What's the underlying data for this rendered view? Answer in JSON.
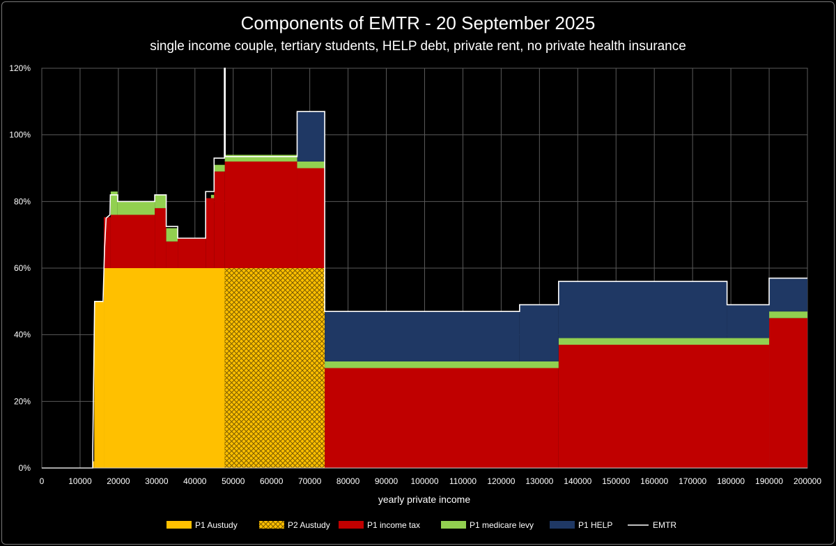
{
  "chart_data": {
    "type": "area",
    "title": "Components of EMTR - 20 September 2025",
    "subtitle": "single income couple, tertiary students, HELP debt, private rent, no private health insurance",
    "xlabel": "yearly private income",
    "ylabel": "",
    "xlim": [
      0,
      200000
    ],
    "ylim": [
      0,
      1.2
    ],
    "x_ticks": [
      0,
      10000,
      20000,
      30000,
      40000,
      50000,
      60000,
      70000,
      80000,
      90000,
      100000,
      110000,
      120000,
      130000,
      140000,
      150000,
      160000,
      170000,
      180000,
      190000,
      200000
    ],
    "x_tick_labels": [
      "0",
      "10000",
      "20000",
      "30000",
      "40000",
      "50000",
      "60000",
      "70000",
      "80000",
      "90000",
      "100000",
      "110000",
      "120000",
      "130000",
      "140000",
      "150000",
      "160000",
      "170000",
      "180000",
      "190000",
      "200000"
    ],
    "y_ticks": [
      0,
      0.2,
      0.4,
      0.6,
      0.8,
      1.0,
      1.2
    ],
    "y_tick_labels": [
      "0%",
      "20%",
      "40%",
      "60%",
      "80%",
      "100%",
      "120%"
    ],
    "grid": true,
    "legend_position": "bottom",
    "colors": {
      "background": "#000000",
      "p1_austudy": "#ffc000",
      "p2_austudy_fill": "#ffc000",
      "p2_austudy_hatch": "#7a5c00",
      "p1_income_tax": "#c00000",
      "p1_medicare_levy": "#92d050",
      "p1_help": "#1f3864",
      "emtr": "#ffffff",
      "grid": "#5a5a5a"
    },
    "series": [
      {
        "name": "P1 Austudy",
        "segments": [
          {
            "x0": 13300,
            "x1": 13700,
            "y": 0.02
          },
          {
            "x0": 13700,
            "x1": 16200,
            "y": 0.5
          },
          {
            "x0": 16200,
            "x1": 47800,
            "y": 0.6
          }
        ]
      },
      {
        "name": "P2 Austudy",
        "segments": [
          {
            "x0": 47800,
            "x1": 73900,
            "y": 0.6
          }
        ]
      },
      {
        "name": "P1 income tax",
        "segments": [
          {
            "x0": 16200,
            "x1": 18000,
            "y": 0.153
          },
          {
            "x0": 18000,
            "x1": 29500,
            "y": 0.16
          },
          {
            "x0": 29500,
            "x1": 32500,
            "y": 0.18
          },
          {
            "x0": 32500,
            "x1": 35500,
            "y": 0.08
          },
          {
            "x0": 35500,
            "x1": 42800,
            "y": 0.09
          },
          {
            "x0": 42800,
            "x1": 45000,
            "y": 0.21
          },
          {
            "x0": 45000,
            "x1": 47800,
            "y": 0.29
          },
          {
            "x0": 47800,
            "x1": 66700,
            "y": 0.32
          },
          {
            "x0": 66700,
            "x1": 73900,
            "y": 0.3
          },
          {
            "x0": 73900,
            "x1": 135000,
            "y": 0.3
          },
          {
            "x0": 135000,
            "x1": 190000,
            "y": 0.37
          },
          {
            "x0": 190000,
            "x1": 200000,
            "y": 0.45
          }
        ]
      },
      {
        "name": "P1 medicare levy",
        "segments": [
          {
            "x0": 18000,
            "x1": 19800,
            "y": 0.07
          },
          {
            "x0": 19800,
            "x1": 29500,
            "y": 0.04
          },
          {
            "x0": 29500,
            "x1": 32500,
            "y": 0.04
          },
          {
            "x0": 32500,
            "x1": 35500,
            "y": 0.04
          },
          {
            "x0": 44200,
            "x1": 45000,
            "y": 0.01
          },
          {
            "x0": 45000,
            "x1": 47800,
            "y": 0.02
          },
          {
            "x0": 47800,
            "x1": 66700,
            "y": 0.02
          },
          {
            "x0": 66700,
            "x1": 73900,
            "y": 0.02
          },
          {
            "x0": 73900,
            "x1": 135000,
            "y": 0.02
          },
          {
            "x0": 135000,
            "x1": 190000,
            "y": 0.02
          },
          {
            "x0": 190000,
            "x1": 200000,
            "y": 0.02
          }
        ]
      },
      {
        "name": "P1 HELP",
        "segments": [
          {
            "x0": 66700,
            "x1": 73900,
            "y": 0.15
          },
          {
            "x0": 73900,
            "x1": 124800,
            "y": 0.15
          },
          {
            "x0": 124800,
            "x1": 135000,
            "y": 0.17
          },
          {
            "x0": 135000,
            "x1": 179000,
            "y": 0.17
          },
          {
            "x0": 179000,
            "x1": 190000,
            "y": 0.1
          },
          {
            "x0": 190000,
            "x1": 200000,
            "y": 0.1
          }
        ]
      },
      {
        "name": "EMTR",
        "points": [
          [
            0,
            0
          ],
          [
            13300,
            0
          ],
          [
            13300,
            0.05
          ],
          [
            13800,
            0.5
          ],
          [
            16000,
            0.5
          ],
          [
            16400,
            0.66
          ],
          [
            16800,
            0.75
          ],
          [
            17800,
            0.76
          ],
          [
            17900,
            0.82
          ],
          [
            19800,
            0.82
          ],
          [
            19800,
            0.8
          ],
          [
            29500,
            0.8
          ],
          [
            29500,
            0.82
          ],
          [
            32500,
            0.82
          ],
          [
            32500,
            0.725
          ],
          [
            35500,
            0.725
          ],
          [
            35500,
            0.69
          ],
          [
            42800,
            0.69
          ],
          [
            42800,
            0.83
          ],
          [
            45000,
            0.83
          ],
          [
            45000,
            0.93
          ],
          [
            47700,
            0.93
          ],
          [
            47700,
            1.2
          ],
          [
            47900,
            1.2
          ],
          [
            47900,
            0.935
          ],
          [
            66700,
            0.935
          ],
          [
            66700,
            1.07
          ],
          [
            73900,
            1.07
          ],
          [
            73900,
            0.47
          ],
          [
            124800,
            0.47
          ],
          [
            124800,
            0.49
          ],
          [
            135000,
            0.49
          ],
          [
            135000,
            0.56
          ],
          [
            179000,
            0.56
          ],
          [
            179000,
            0.49
          ],
          [
            190000,
            0.49
          ],
          [
            190000,
            0.57
          ],
          [
            200000,
            0.57
          ]
        ]
      }
    ],
    "legend": [
      {
        "label": "P1 Austudy",
        "key": "p1_austudy"
      },
      {
        "label": "P2 Austudy",
        "key": "p2_austudy"
      },
      {
        "label": "P1 income tax",
        "key": "p1_income_tax"
      },
      {
        "label": "P1 medicare levy",
        "key": "p1_medicare_levy"
      },
      {
        "label": "P1 HELP",
        "key": "p1_help"
      },
      {
        "label": "EMTR",
        "key": "emtr"
      }
    ]
  }
}
